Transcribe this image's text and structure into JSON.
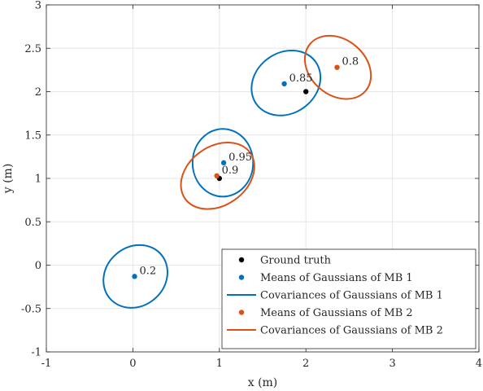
{
  "chart_data": {
    "type": "scatter",
    "xlabel": "x (m)",
    "ylabel": "y (m)",
    "xlim": [
      -1,
      4
    ],
    "ylim": [
      -1,
      3
    ],
    "grid": true,
    "legend_position": "bottom-right",
    "x_ticks": [
      {
        "value": -1,
        "label": "-1"
      },
      {
        "value": 0,
        "label": "0"
      },
      {
        "value": 1,
        "label": "1"
      },
      {
        "value": 2,
        "label": "2"
      },
      {
        "value": 3,
        "label": "3"
      },
      {
        "value": 4,
        "label": "4"
      }
    ],
    "y_ticks": [
      {
        "value": -1,
        "label": "-1"
      },
      {
        "value": -0.5,
        "label": "-0.5"
      },
      {
        "value": 0,
        "label": "0"
      },
      {
        "value": 0.5,
        "label": "0.5"
      },
      {
        "value": 1,
        "label": "1"
      },
      {
        "value": 1.5,
        "label": "1.5"
      },
      {
        "value": 2,
        "label": "2"
      },
      {
        "value": 2.5,
        "label": "2.5"
      },
      {
        "value": 3,
        "label": "3"
      }
    ],
    "colors": {
      "ground_truth": "#000000",
      "mb1": "#0072BD",
      "mb2": "#D95319",
      "grid": "#e6e6e6",
      "axis": "#262626"
    },
    "ground_truth": [
      {
        "x": 1.0,
        "y": 1.0
      },
      {
        "x": 2.0,
        "y": 2.0
      }
    ],
    "mb1_means": [
      {
        "x": 0.02,
        "y": -0.13,
        "weight": "0.2"
      },
      {
        "x": 1.05,
        "y": 1.18,
        "weight": "0.95"
      },
      {
        "x": 1.75,
        "y": 2.09,
        "weight": "0.85"
      }
    ],
    "mb1_covariances": [
      {
        "cx": 0.03,
        "cy": -0.13,
        "rx": 0.39,
        "ry": 0.34,
        "angle_deg": 40
      },
      {
        "cx": 1.04,
        "cy": 1.18,
        "rx": 0.35,
        "ry": 0.39,
        "angle_deg": 0
      },
      {
        "cx": 1.77,
        "cy": 2.1,
        "rx": 0.42,
        "ry": 0.35,
        "angle_deg": 35
      }
    ],
    "mb2_means": [
      {
        "x": 0.97,
        "y": 1.03,
        "weight": "0.9"
      },
      {
        "x": 2.36,
        "y": 2.28,
        "weight": "0.8"
      }
    ],
    "mb2_covariances": [
      {
        "cx": 0.98,
        "cy": 1.03,
        "rx": 0.46,
        "ry": 0.34,
        "angle_deg": 35
      },
      {
        "cx": 2.37,
        "cy": 2.28,
        "rx": 0.42,
        "ry": 0.32,
        "angle_deg": -40
      }
    ],
    "legend": [
      {
        "label": "Ground truth",
        "kind": "point",
        "series": "ground_truth"
      },
      {
        "label": "Means of Gaussians of MB 1",
        "kind": "point",
        "series": "mb1"
      },
      {
        "label": "Covariances of Gaussians of MB 1",
        "kind": "line",
        "series": "mb1"
      },
      {
        "label": "Means of Gaussians of MB 2",
        "kind": "point",
        "series": "mb2"
      },
      {
        "label": "Covariances of Gaussians of MB 2",
        "kind": "line",
        "series": "mb2"
      }
    ]
  }
}
